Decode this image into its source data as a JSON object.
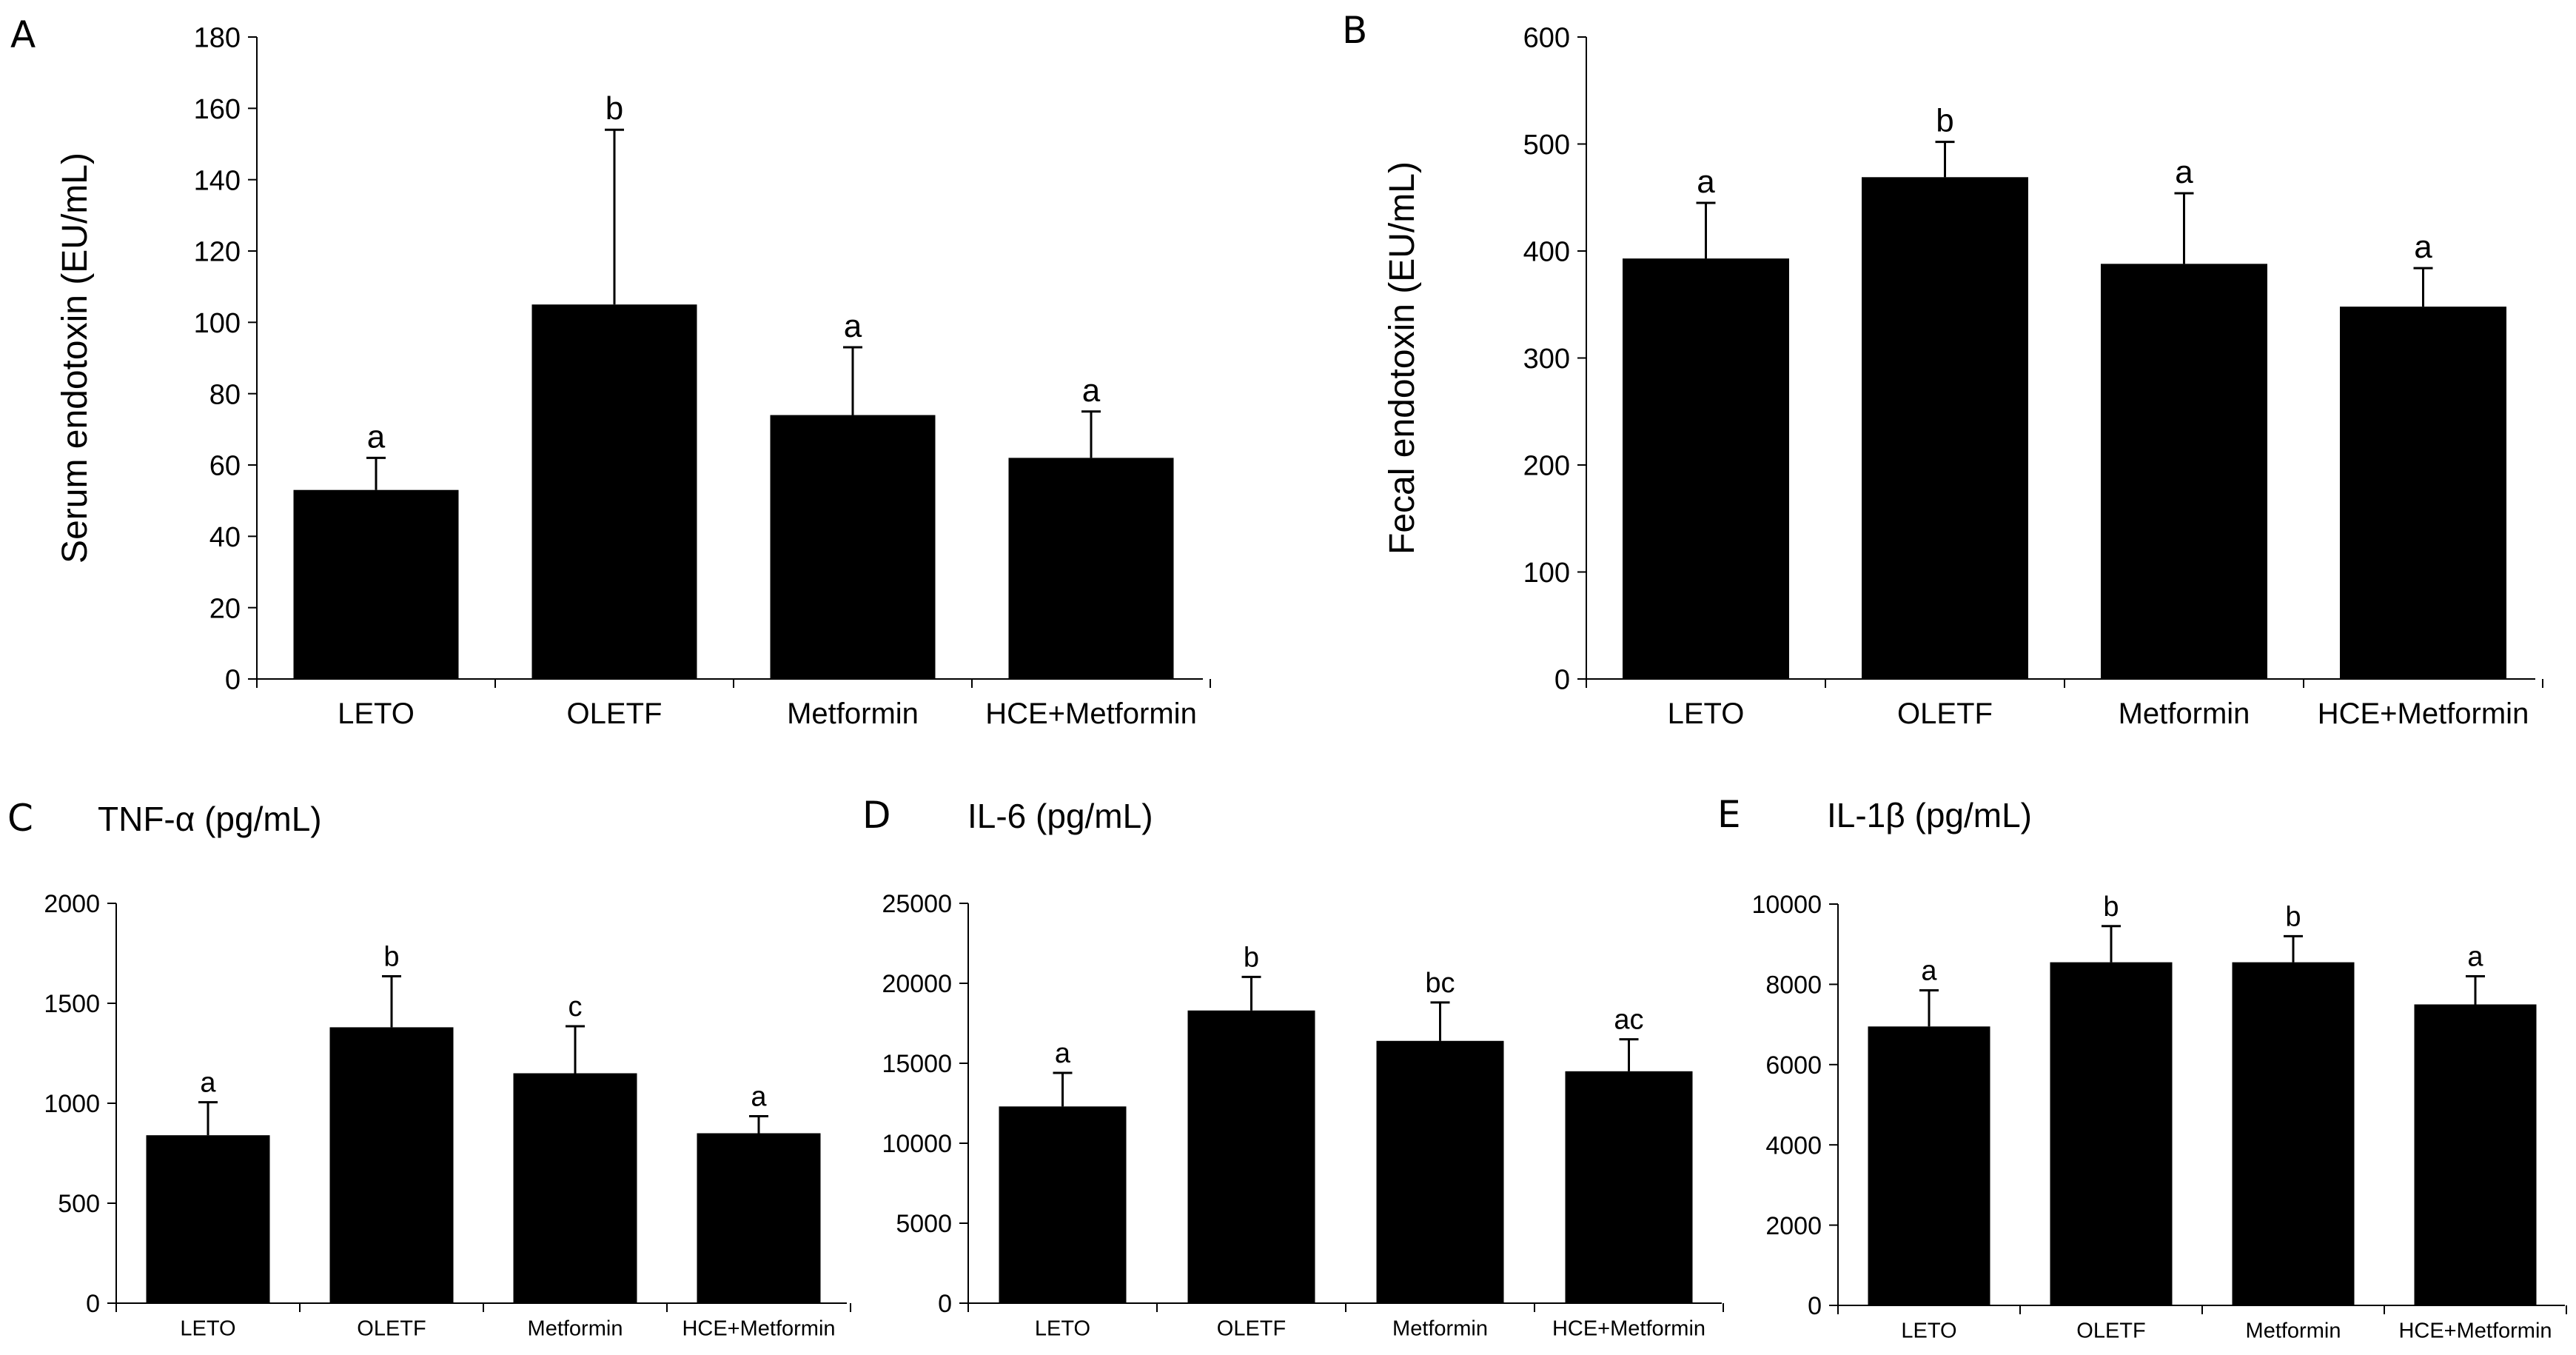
{
  "figure": {
    "categories": [
      "LETO",
      "OLETF",
      "Metformin",
      "HCE+Metformin"
    ],
    "colors": {
      "bar": "#000000",
      "axis": "#000000",
      "background": "#ffffff"
    }
  },
  "chart_data": [
    {
      "panel": "A",
      "type": "bar",
      "title": "",
      "xlabel": "",
      "ylabel": "Serum endotoxin (EU/mL)",
      "categories": [
        "LETO",
        "OLETF",
        "Metformin",
        "HCE+Metformin"
      ],
      "values": [
        53,
        105,
        74,
        62
      ],
      "errors": [
        9,
        49,
        19,
        13
      ],
      "letters": [
        "a",
        "b",
        "a",
        "a"
      ],
      "ylim": [
        0,
        180
      ],
      "yticks": [
        0,
        20,
        40,
        60,
        80,
        100,
        120,
        140,
        160,
        180
      ],
      "ytick_labels": [
        "0",
        "20",
        "40",
        "60",
        "80",
        "100",
        "120",
        "140",
        "160",
        "180"
      ],
      "grid": false
    },
    {
      "panel": "B",
      "type": "bar",
      "title": "",
      "xlabel": "",
      "ylabel": "Fecal endotoxin (EU/mL)",
      "categories": [
        "LETO",
        "OLETF",
        "Metformin",
        "HCE+Metformin"
      ],
      "values": [
        393,
        469,
        388,
        348
      ],
      "errors": [
        52,
        33,
        66,
        36
      ],
      "letters": [
        "a",
        "b",
        "a",
        "a"
      ],
      "ylim": [
        0,
        600
      ],
      "yticks": [
        0,
        100,
        200,
        300,
        400,
        500,
        600
      ],
      "ytick_labels": [
        "0",
        "100",
        "200",
        "300",
        "400",
        "500",
        "600"
      ],
      "grid": false
    },
    {
      "panel": "C",
      "type": "bar",
      "title": "TNF-α (pg/mL)",
      "xlabel": "",
      "ylabel": "",
      "categories": [
        "LETO",
        "OLETF",
        "Metformin",
        "HCE+Metformin"
      ],
      "values": [
        840,
        1380,
        1150,
        850
      ],
      "errors": [
        165,
        255,
        235,
        85
      ],
      "letters": [
        "a",
        "b",
        "c",
        "a"
      ],
      "ylim": [
        0,
        2000
      ],
      "yticks": [
        0,
        500,
        1000,
        1500,
        2000
      ],
      "ytick_labels": [
        "0",
        "500",
        "1000",
        "1500",
        "2000"
      ],
      "grid": false
    },
    {
      "panel": "D",
      "type": "bar",
      "title": "IL-6 (pg/mL)",
      "xlabel": "",
      "ylabel": "",
      "categories": [
        "LETO",
        "OLETF",
        "Metformin",
        "HCE+Metformin"
      ],
      "values": [
        12300,
        18300,
        16400,
        14500
      ],
      "errors": [
        2100,
        2100,
        2400,
        2000
      ],
      "letters": [
        "a",
        "b",
        "bc",
        "ac"
      ],
      "ylim": [
        0,
        25000
      ],
      "yticks": [
        0,
        5000,
        10000,
        15000,
        20000,
        25000
      ],
      "ytick_labels": [
        "0",
        "5000",
        "10000",
        "15000",
        "20000",
        "25000"
      ],
      "grid": false
    },
    {
      "panel": "E",
      "type": "bar",
      "title": "IL-1β (pg/mL)",
      "xlabel": "",
      "ylabel": "",
      "categories": [
        "LETO",
        "OLETF",
        "Metformin",
        "HCE+Metformin"
      ],
      "values": [
        6950,
        8550,
        8550,
        7500
      ],
      "errors": [
        900,
        900,
        650,
        700
      ],
      "letters": [
        "a",
        "b",
        "b",
        "a"
      ],
      "ylim": [
        0,
        10000
      ],
      "yticks": [
        0,
        2000,
        4000,
        6000,
        8000,
        10000
      ],
      "ytick_labels": [
        "0",
        "2000",
        "4000",
        "6000",
        "8000",
        "10000"
      ],
      "grid": false
    }
  ]
}
